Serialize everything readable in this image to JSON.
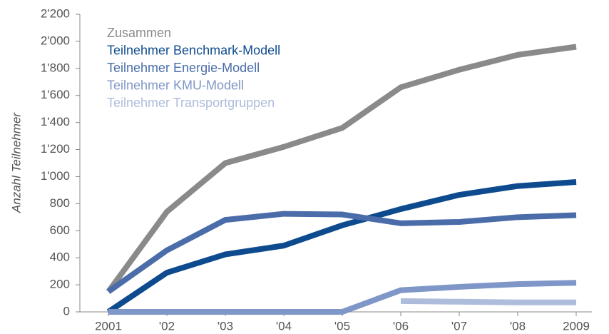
{
  "chart_data": {
    "type": "line",
    "y_label": "Anzahl Teilnehmer",
    "categories": [
      "2001",
      "'02",
      "'03",
      "'04",
      "'05",
      "'06",
      "'07",
      "'08",
      "2009"
    ],
    "series": [
      {
        "name": "Zusammen",
        "color": "#8a8a8a",
        "values": [
          150,
          740,
          1100,
          1220,
          1360,
          1660,
          1790,
          1900,
          1960
        ]
      },
      {
        "name": "Teilnehmer Benchmark-Modell",
        "color": "#0e4a8e",
        "values": [
          0,
          290,
          425,
          490,
          640,
          760,
          865,
          930,
          960
        ]
      },
      {
        "name": "Teilnehmer Energie-Modell",
        "color": "#4a6daa",
        "values": [
          150,
          455,
          680,
          725,
          720,
          655,
          665,
          700,
          715
        ]
      },
      {
        "name": "Teilnehmer KMU-Modell",
        "color": "#7f96c8",
        "values": [
          0,
          0,
          0,
          0,
          0,
          160,
          185,
          205,
          215
        ]
      },
      {
        "name": "Teilnehmer Transportgruppen",
        "color": "#aebcdc",
        "values": [
          null,
          null,
          null,
          null,
          null,
          80,
          75,
          70,
          70
        ]
      }
    ],
    "ylim": [
      0,
      2200
    ],
    "yticks": [
      0,
      200,
      400,
      600,
      800,
      {
        "value": 1000,
        "label": "1'000"
      },
      {
        "value": 1200,
        "label": "1'200"
      },
      {
        "value": 1400,
        "label": "1'400"
      },
      {
        "value": 1600,
        "label": "1'600"
      },
      {
        "value": 1800,
        "label": "1'800"
      },
      {
        "value": 2000,
        "label": "2'000"
      },
      {
        "value": 2200,
        "label": "2'200"
      }
    ],
    "legend": "top-left",
    "grid": false
  }
}
